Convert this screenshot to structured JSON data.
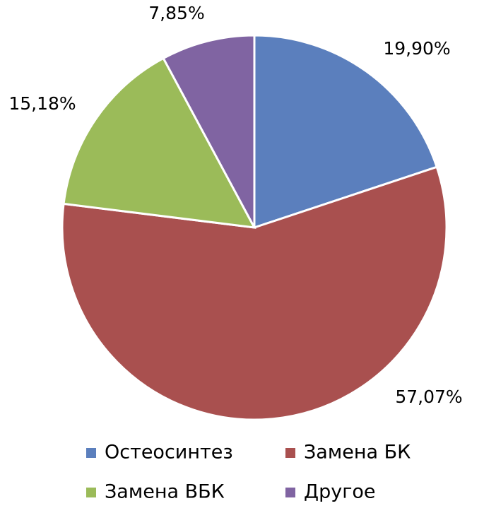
{
  "chart_data": {
    "type": "pie",
    "categories": [
      "Остеосинтез",
      "Замена БК",
      "Замена ВБК",
      "Другое"
    ],
    "values": [
      19.9,
      57.07,
      15.18,
      7.85
    ],
    "value_labels": [
      "19,90%",
      "57,07%",
      "15,18%",
      "7,85%"
    ],
    "colors": [
      "#5b7fbd",
      "#a9504f",
      "#9bbb59",
      "#8064a2"
    ],
    "legend": "bottom"
  }
}
